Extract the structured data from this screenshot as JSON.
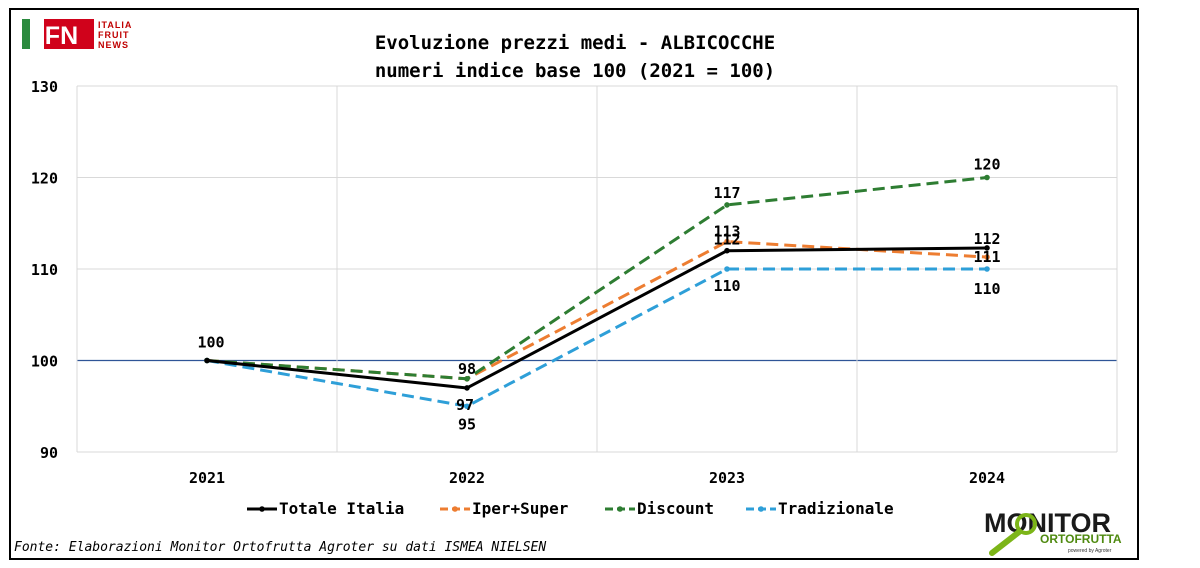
{
  "chart_data": {
    "type": "line",
    "title": "Evoluzione prezzi medi - ALBICOCCHE",
    "subtitle": "numeri indice base 100 (2021 = 100)",
    "categories": [
      "2021",
      "2022",
      "2023",
      "2024"
    ],
    "ylim": [
      90,
      130
    ],
    "yticks": [
      90,
      100,
      110,
      120,
      130
    ],
    "grid": true,
    "legend_position": "bottom",
    "series": [
      {
        "name": "Totale Italia",
        "values": [
          100,
          97,
          112,
          112.3
        ],
        "labels": [
          "100",
          "97",
          "112",
          "112"
        ],
        "color": "#000000",
        "dash": "solid"
      },
      {
        "name": "Iper+Super",
        "values": [
          100,
          98,
          113,
          111.3
        ],
        "labels": [
          "",
          "",
          "113",
          "111"
        ],
        "color": "#ed7d31",
        "dash": "dashed"
      },
      {
        "name": "Discount",
        "values": [
          100,
          98,
          117,
          120
        ],
        "labels": [
          "",
          "98",
          "117",
          "120"
        ],
        "color": "#2e7d32",
        "dash": "dashed"
      },
      {
        "name": "Tradizionale",
        "values": [
          100,
          95,
          110,
          110
        ],
        "labels": [
          "",
          "95",
          "110",
          "110"
        ],
        "color": "#2e9fd8",
        "dash": "dashed"
      }
    ]
  },
  "source": "Fonte: Elaborazioni Monitor Ortofrutta Agroter su dati ISMEA NIELSEN",
  "logos": {
    "ifn": {
      "text": "IFN",
      "line1": "ITALIA",
      "line2": "FRUIT",
      "line3": "NEWS"
    },
    "monitor": {
      "word1": "MONITOR",
      "word2": "ORTOFRUTTA",
      "tagline": "powered by Agroter"
    }
  }
}
